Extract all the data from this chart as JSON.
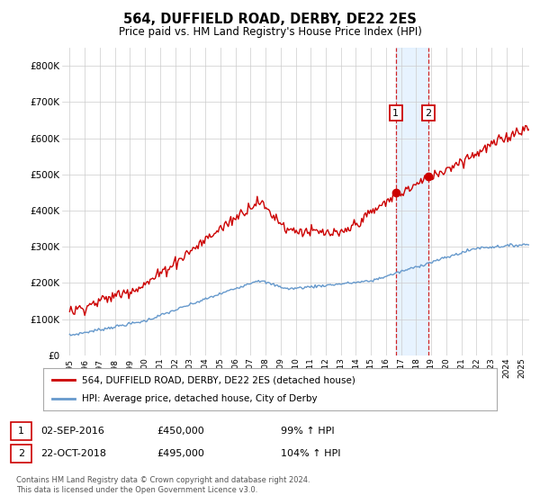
{
  "title": "564, DUFFIELD ROAD, DERBY, DE22 2ES",
  "subtitle": "Price paid vs. HM Land Registry's House Price Index (HPI)",
  "legend_line1": "564, DUFFIELD ROAD, DERBY, DE22 2ES (detached house)",
  "legend_line2": "HPI: Average price, detached house, City of Derby",
  "footnote": "Contains HM Land Registry data © Crown copyright and database right 2024.\nThis data is licensed under the Open Government Licence v3.0.",
  "annotation1_date": "02-SEP-2016",
  "annotation1_price": "£450,000",
  "annotation1_hpi": "99% ↑ HPI",
  "annotation2_date": "22-OCT-2018",
  "annotation2_price": "£495,000",
  "annotation2_hpi": "104% ↑ HPI",
  "ylim": [
    0,
    850000
  ],
  "xlim_left": 1994.5,
  "xlim_right": 2025.5,
  "red_color": "#cc0000",
  "blue_color": "#6699cc",
  "annotation_box_color": "#cc0000",
  "vline_color": "#cc0000",
  "grid_color": "#cccccc",
  "bg_color": "#ffffff",
  "shade_color": "#ddeeff",
  "anno_y": 670000,
  "t1": 2016.67,
  "t2": 2018.8,
  "p1": 450000,
  "p2": 495000
}
